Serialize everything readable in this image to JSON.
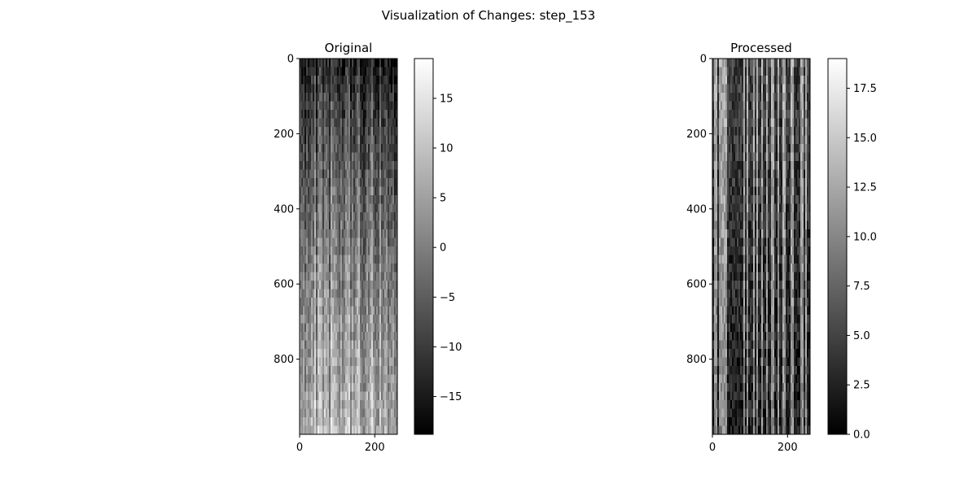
{
  "figure": {
    "title": "Visualization of Changes: step_153"
  },
  "chart_data": [
    {
      "type": "heatmap",
      "title": "Original",
      "xlabel": "",
      "ylabel": "",
      "x_range": [
        0,
        260
      ],
      "y_range": [
        0,
        1000
      ],
      "y_inverted": true,
      "x_ticks": [
        0,
        200
      ],
      "x_tick_labels": [
        "0",
        "200"
      ],
      "y_ticks": [
        0,
        200,
        400,
        600,
        800
      ],
      "y_tick_labels": [
        "0",
        "200",
        "400",
        "600",
        "800"
      ],
      "colormap": "gray",
      "colorbar": {
        "vmin": -18.8,
        "vmax": 19.0,
        "ticks": [
          -15,
          -10,
          -5,
          0,
          5,
          10,
          15
        ],
        "tick_labels": [
          "−15",
          "−10",
          "−5",
          "0",
          "5",
          "10",
          "15"
        ]
      },
      "pattern": "dark at top, brightening toward bottom, noisy vertical columns"
    },
    {
      "type": "heatmap",
      "title": "Processed",
      "xlabel": "",
      "ylabel": "",
      "x_range": [
        0,
        260
      ],
      "y_range": [
        0,
        1000
      ],
      "y_inverted": true,
      "x_ticks": [
        0,
        200
      ],
      "x_tick_labels": [
        "0",
        "200"
      ],
      "y_ticks": [
        0,
        200,
        400,
        600,
        800
      ],
      "y_tick_labels": [
        "0",
        "200",
        "400",
        "600",
        "800"
      ],
      "colormap": "gray",
      "colorbar": {
        "vmin": 0.0,
        "vmax": 19.0,
        "ticks": [
          0.0,
          2.5,
          5.0,
          7.5,
          10.0,
          12.5,
          15.0,
          17.5
        ],
        "tick_labels": [
          "0.0",
          "2.5",
          "5.0",
          "7.5",
          "10.0",
          "12.5",
          "15.0",
          "17.5"
        ]
      },
      "pattern": "mostly dark with bright noisy vertical columns, brighter at top"
    }
  ]
}
